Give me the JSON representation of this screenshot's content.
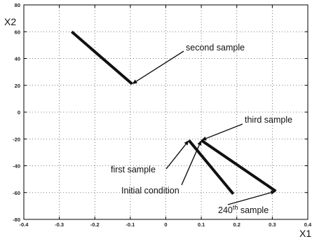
{
  "chart_data": {
    "type": "line",
    "xlabel": "X1",
    "ylabel": "X2",
    "xlim": [
      -0.4,
      0.4
    ],
    "ylim": [
      -80,
      80
    ],
    "grid": true,
    "xticks": [
      "-0.4",
      "-0.3",
      "-0.2",
      "-0.1",
      "0",
      "0.1",
      "0.2",
      "0.3",
      "0.4"
    ],
    "yticks": [
      "80",
      "60",
      "40",
      "20",
      "0",
      "-20",
      "-40",
      "-60",
      "-80"
    ],
    "series": [
      {
        "x": [
          -0.265,
          -0.095,
          -0.095
        ],
        "y": [
          60,
          21,
          21
        ]
      },
      {
        "x": [
          0.065,
          0.19
        ],
        "y": [
          -21,
          -61
        ]
      },
      {
        "x": [
          0.1,
          0.31
        ],
        "y": [
          -21,
          -59
        ]
      }
    ],
    "annotations": [
      {
        "text": "second sample",
        "at": [
          -0.095,
          21
        ],
        "text_at": [
          0.05,
          44
        ]
      },
      {
        "text": "third sample",
        "at": [
          0.1,
          -21
        ],
        "text_at": [
          0.18,
          -10
        ]
      },
      {
        "text": "first sample",
        "at": [
          0.065,
          -21
        ],
        "text_at": [
          -0.08,
          -40
        ]
      },
      {
        "text": "Initial condition",
        "at": [
          0.1,
          -21
        ],
        "text_at": [
          -0.05,
          -55
        ]
      },
      {
        "text": "240",
        "superscript": "th",
        "suffix": " sample",
        "at": [
          0.31,
          -59
        ],
        "text_at": [
          0.14,
          -70
        ]
      }
    ]
  }
}
